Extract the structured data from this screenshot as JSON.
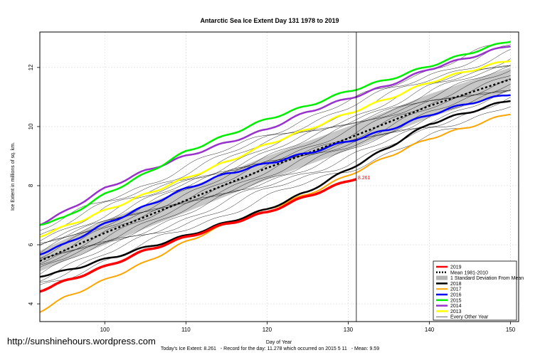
{
  "chart_data": {
    "type": "line",
    "title": "Antarctic Sea Ice Extent Day 131 1978 to 2019",
    "xlabel": "Day of Year",
    "ylabel": "Ice Extent in millions of sq. km.",
    "xlim": [
      92,
      151
    ],
    "ylim": [
      3.4,
      13.2
    ],
    "xticks": [
      100,
      110,
      120,
      130,
      140,
      150
    ],
    "yticks": [
      4,
      6,
      8,
      10,
      12
    ],
    "grid": true,
    "legend_position": "bottom-right",
    "marker_day": 131,
    "current_label": "8.261",
    "std_band": {
      "name": "1 Standard Deviation From Mean",
      "x": [
        92,
        100,
        110,
        120,
        130,
        140,
        150
      ],
      "lower": [
        5.1,
        6.0,
        7.1,
        8.2,
        9.2,
        10.3,
        11.2
      ],
      "upper": [
        5.8,
        6.8,
        7.9,
        9.0,
        10.0,
        11.1,
        12.0
      ]
    },
    "series": [
      {
        "name": "2019",
        "color": "#ff0000",
        "width": 3.5,
        "dash": "",
        "x": [
          92,
          95,
          100,
          105,
          110,
          115,
          120,
          125,
          128,
          131
        ],
        "y": [
          4.45,
          4.75,
          5.25,
          5.8,
          6.25,
          6.7,
          7.1,
          7.65,
          7.95,
          8.26
        ]
      },
      {
        "name": "Mean 1981-2010",
        "color": "#000000",
        "width": 2.5,
        "dash": "3,3",
        "x": [
          92,
          100,
          110,
          120,
          130,
          140,
          150
        ],
        "y": [
          5.45,
          6.4,
          7.5,
          8.6,
          9.6,
          10.7,
          11.6
        ]
      },
      {
        "name": "2018",
        "color": "#000000",
        "width": 2.5,
        "dash": "",
        "x": [
          92,
          95,
          100,
          105,
          110,
          115,
          120,
          125,
          130,
          135,
          140,
          145,
          150
        ],
        "y": [
          4.95,
          5.1,
          5.5,
          5.9,
          6.3,
          6.75,
          7.2,
          7.8,
          8.55,
          9.3,
          10.1,
          10.5,
          10.9
        ]
      },
      {
        "name": "2017",
        "color": "#ffa500",
        "width": 2,
        "dash": "",
        "x": [
          92,
          95,
          100,
          105,
          110,
          115,
          120,
          125,
          130,
          135,
          140,
          145,
          150
        ],
        "y": [
          3.75,
          4.2,
          4.8,
          5.4,
          6.1,
          6.7,
          7.2,
          7.7,
          8.35,
          9.0,
          9.6,
          10.0,
          10.45
        ]
      },
      {
        "name": "2016",
        "color": "#0000ff",
        "width": 2.5,
        "dash": "",
        "x": [
          92,
          95,
          100,
          105,
          110,
          115,
          120,
          125,
          130,
          135,
          140,
          145,
          150
        ],
        "y": [
          5.7,
          6.0,
          6.7,
          7.3,
          7.9,
          8.4,
          8.75,
          9.1,
          9.5,
          9.9,
          10.4,
          10.8,
          11.1
        ]
      },
      {
        "name": "2015",
        "color": "#00ee00",
        "width": 2.5,
        "dash": "",
        "x": [
          92,
          95,
          100,
          105,
          110,
          115,
          120,
          125,
          130,
          135,
          140,
          145,
          150
        ],
        "y": [
          6.7,
          6.9,
          7.7,
          8.4,
          9.15,
          9.7,
          10.25,
          10.7,
          11.2,
          11.6,
          12.05,
          12.5,
          12.9
        ]
      },
      {
        "name": "2014",
        "color": "#9932cc",
        "width": 2.5,
        "dash": "",
        "x": [
          92,
          95,
          100,
          105,
          110,
          115,
          120,
          125,
          130,
          135,
          140,
          145,
          150
        ],
        "y": [
          6.7,
          7.1,
          7.9,
          8.5,
          9.0,
          9.45,
          9.9,
          10.5,
          10.95,
          11.4,
          11.95,
          12.35,
          12.75
        ]
      },
      {
        "name": "2013",
        "color": "#ffff00",
        "width": 2.5,
        "dash": "",
        "x": [
          92,
          95,
          100,
          105,
          110,
          115,
          120,
          125,
          130,
          135,
          140,
          145,
          150
        ],
        "y": [
          6.3,
          6.6,
          7.15,
          7.7,
          8.25,
          8.8,
          9.4,
          9.9,
          10.45,
          10.95,
          11.5,
          11.9,
          12.25
        ]
      },
      {
        "name": "Every Other Year",
        "color": "#000000",
        "width": 0.6,
        "dash": "",
        "legend_only": true
      }
    ],
    "every_other_year_offsets": [
      -0.9,
      -0.7,
      -0.55,
      -0.4,
      -0.3,
      -0.2,
      -0.1,
      0.0,
      0.1,
      0.2,
      0.3,
      0.4,
      0.5,
      0.6,
      0.75,
      0.9,
      1.05
    ]
  },
  "watermark": "http://sunshinehours.wordpress.com",
  "footer": {
    "extent_text": "Today's Ice Extent: 8.261",
    "record_text": "- Record for the day: 11.278 which occurred on 2015 5 11",
    "mean_text": "- Mean: 9.59"
  }
}
